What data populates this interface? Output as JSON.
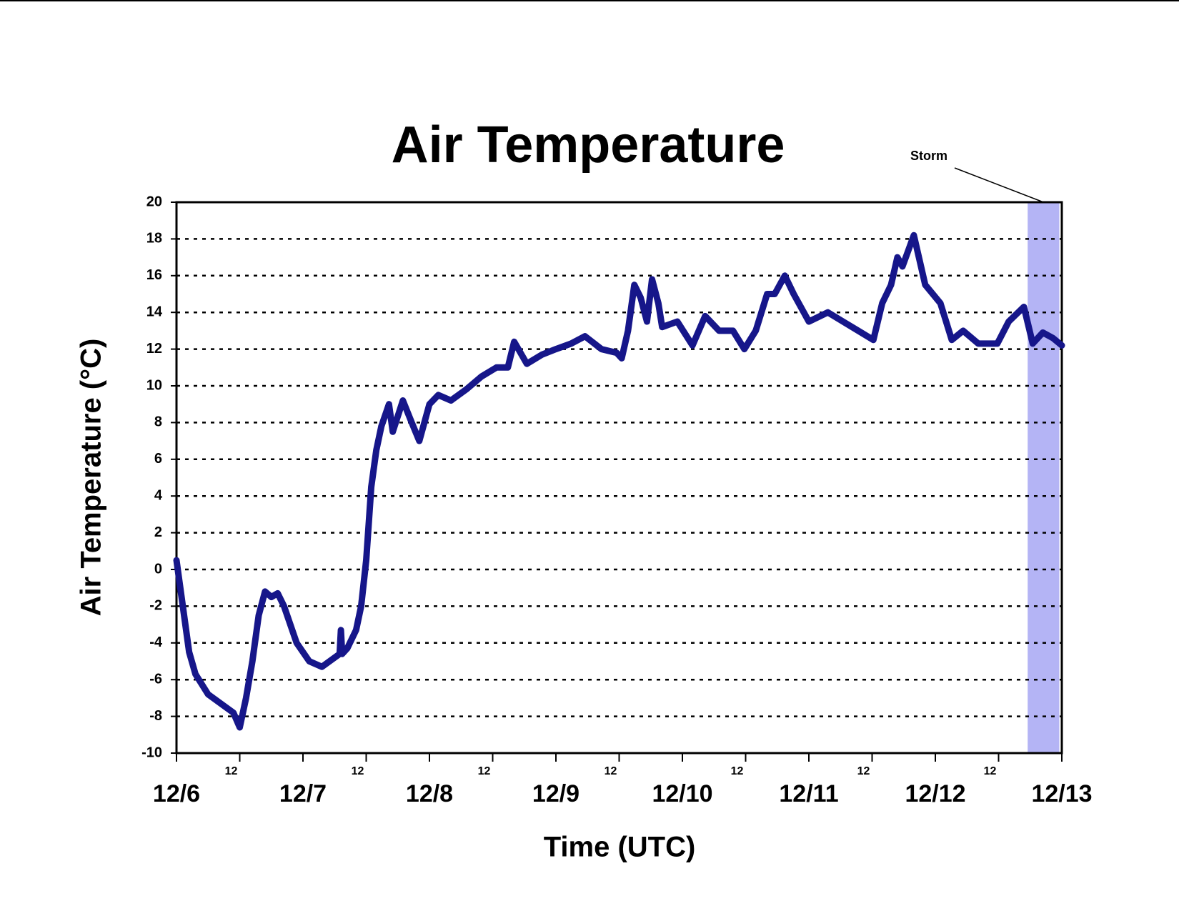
{
  "chart_data": {
    "type": "line",
    "title": "Air Temperature",
    "x_label": "Time (UTC)",
    "y_label": "Air Temperature (°C)",
    "xlim": [
      0,
      7
    ],
    "xticks": [
      {
        "value": 0,
        "label": "12/6"
      },
      {
        "value": 0.5,
        "label": "12"
      },
      {
        "value": 1,
        "label": "12/7"
      },
      {
        "value": 1.5,
        "label": "12"
      },
      {
        "value": 2,
        "label": "12/8"
      },
      {
        "value": 2.5,
        "label": "12"
      },
      {
        "value": 3,
        "label": "12/9"
      },
      {
        "value": 3.5,
        "label": "12"
      },
      {
        "value": 4,
        "label": "12/10"
      },
      {
        "value": 4.5,
        "label": "12"
      },
      {
        "value": 5,
        "label": "12/11"
      },
      {
        "value": 5.5,
        "label": "12"
      },
      {
        "value": 6,
        "label": "12/12"
      },
      {
        "value": 6.5,
        "label": "12"
      },
      {
        "value": 7,
        "label": "12/13"
      }
    ],
    "ylim": [
      -10,
      20
    ],
    "yticks": [
      -10,
      -8,
      -6,
      -4,
      -2,
      0,
      2,
      4,
      6,
      8,
      10,
      12,
      14,
      16,
      18,
      20
    ],
    "grid": true,
    "annotation": {
      "text": "Storm",
      "x0": 6.73,
      "x1": 6.98,
      "color": "#b4b4f5"
    },
    "series": [
      {
        "name": "Air Temperature",
        "color": "#16168a",
        "x": [
          0,
          0.05,
          0.1,
          0.15,
          0.25,
          0.35,
          0.45,
          0.5,
          0.55,
          0.6,
          0.65,
          0.7,
          0.75,
          0.8,
          0.85,
          0.95,
          1.05,
          1.15,
          1.25,
          1.29,
          1.3,
          1.31,
          1.35,
          1.42,
          1.46,
          1.5,
          1.54,
          1.58,
          1.62,
          1.68,
          1.71,
          1.79,
          1.86,
          1.92,
          2.0,
          2.07,
          2.17,
          2.29,
          2.41,
          2.53,
          2.62,
          2.67,
          2.77,
          2.89,
          3.0,
          3.12,
          3.23,
          3.36,
          3.48,
          3.52,
          3.57,
          3.62,
          3.67,
          3.72,
          3.76,
          3.81,
          3.84,
          3.96,
          4.08,
          4.18,
          4.29,
          4.4,
          4.49,
          4.58,
          4.67,
          4.73,
          4.81,
          4.88,
          5.0,
          5.15,
          5.27,
          5.39,
          5.51,
          5.58,
          5.65,
          5.7,
          5.74,
          5.83,
          5.92,
          6.04,
          6.13,
          6.22,
          6.34,
          6.49,
          6.58,
          6.7,
          6.77,
          6.85,
          6.93,
          7.0
        ],
        "values": [
          0.5,
          -2,
          -4.5,
          -5.7,
          -6.8,
          -7.3,
          -7.8,
          -8.6,
          -7,
          -5,
          -2.5,
          -1.2,
          -1.5,
          -1.3,
          -2,
          -4,
          -5,
          -5.3,
          -4.8,
          -4.6,
          -3.3,
          -4.6,
          -4.3,
          -3.3,
          -2,
          0.5,
          4.5,
          6.5,
          7.8,
          9,
          7.5,
          9.2,
          8,
          7,
          9,
          9.5,
          9.2,
          9.8,
          10.5,
          11,
          11,
          12.4,
          11.2,
          11.7,
          12,
          12.3,
          12.7,
          12,
          11.8,
          11.5,
          13,
          15.5,
          14.8,
          13.5,
          15.8,
          14.5,
          13.2,
          13.5,
          12.2,
          13.8,
          13,
          13,
          12,
          13,
          15,
          15,
          16,
          15,
          13.5,
          14,
          13.5,
          13,
          12.5,
          14.5,
          15.5,
          17,
          16.5,
          18.2,
          15.5,
          14.5,
          12.5,
          13,
          12.3,
          12.3,
          13.5,
          14.3,
          12.3,
          12.9,
          12.6,
          12.2
        ]
      }
    ]
  }
}
